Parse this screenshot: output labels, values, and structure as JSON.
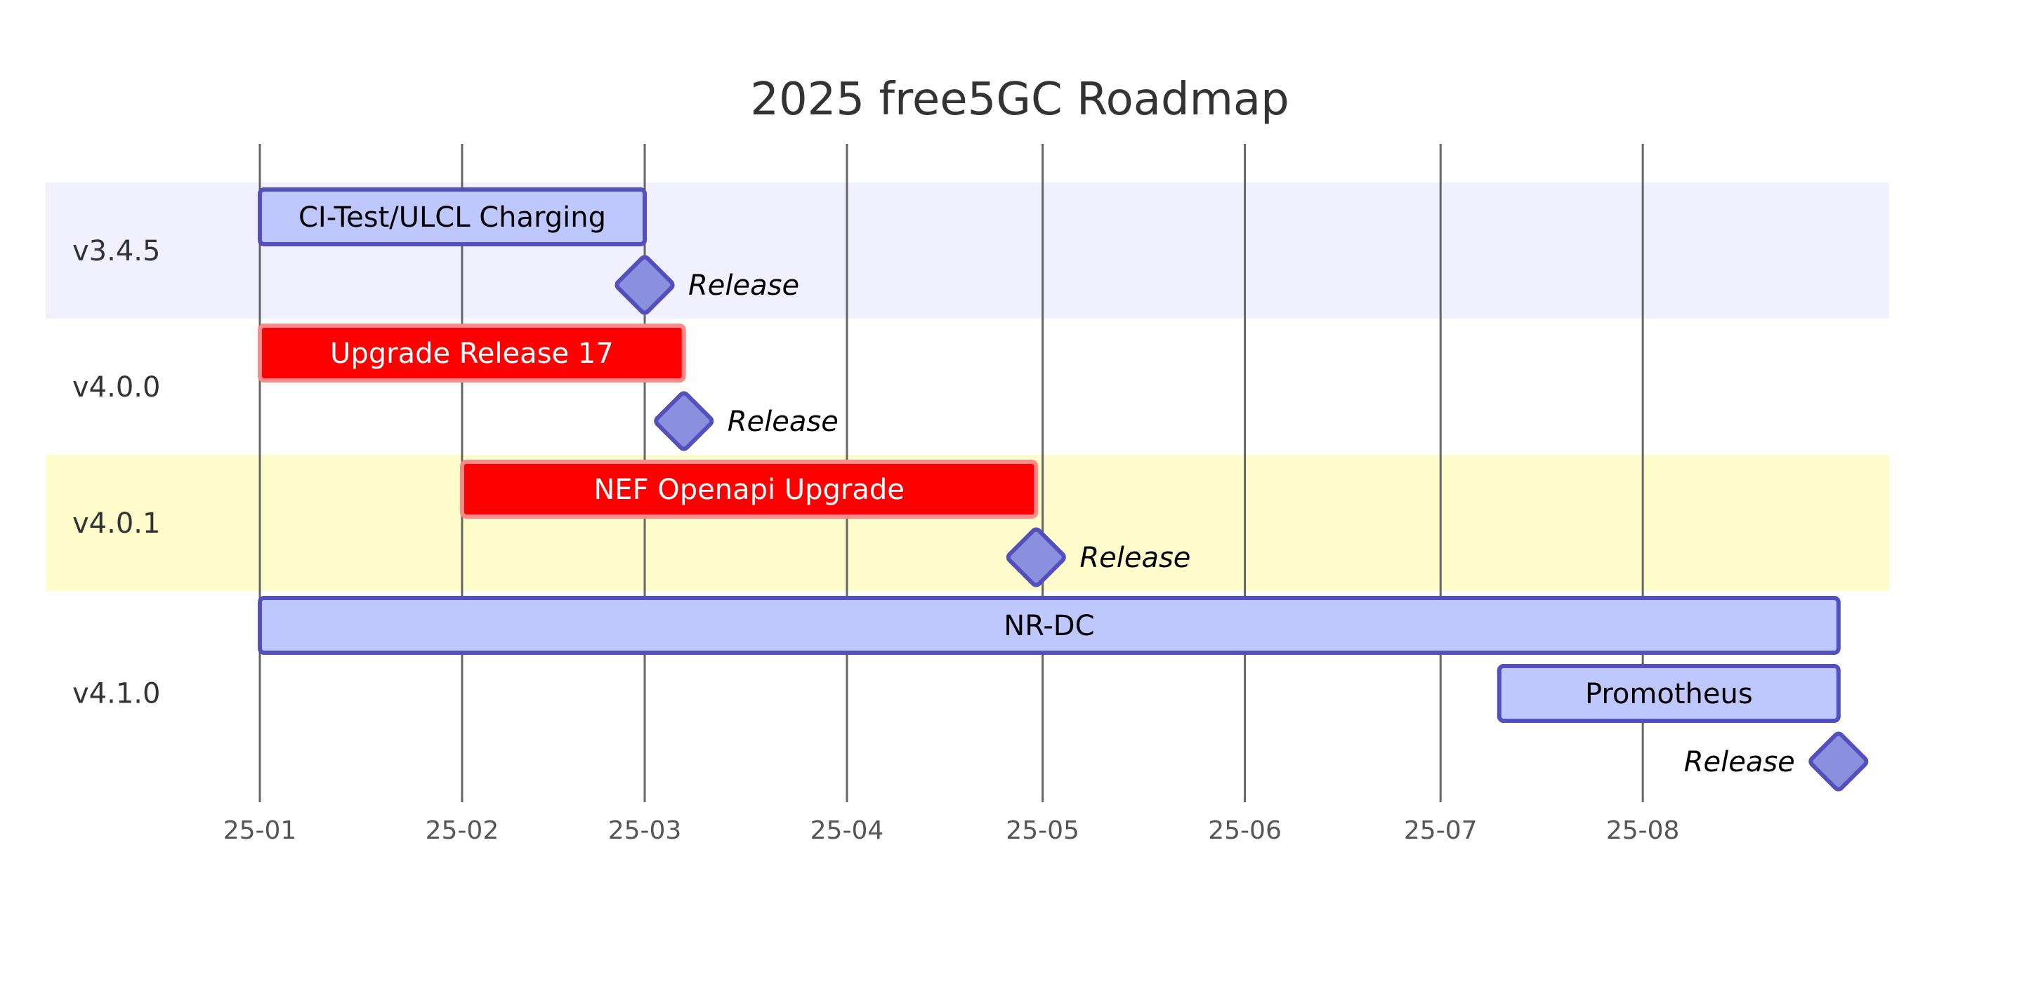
{
  "chart_data": {
    "type": "gantt",
    "title": "2025 free5GC Roadmap",
    "x_domain": [
      "2025-01-01",
      "2025-09-18"
    ],
    "ticks": [
      {
        "date": "2025-01-01",
        "label": "25-01"
      },
      {
        "date": "2025-02-01",
        "label": "25-02"
      },
      {
        "date": "2025-03-01",
        "label": "25-03"
      },
      {
        "date": "2025-04-01",
        "label": "25-04"
      },
      {
        "date": "2025-05-01",
        "label": "25-05"
      },
      {
        "date": "2025-06-01",
        "label": "25-06"
      },
      {
        "date": "2025-07-01",
        "label": "25-07"
      },
      {
        "date": "2025-08-01",
        "label": "25-08"
      }
    ],
    "sections": [
      {
        "name": "v3.4.5",
        "band_color": "#f0f0ff",
        "items": [
          {
            "type": "task",
            "label": "CI-Test/ULCL Charging",
            "start": "2025-01-01",
            "end": "2025-03-01",
            "status": "active"
          },
          {
            "type": "milestone",
            "label": "Release",
            "date": "2025-03-01"
          }
        ]
      },
      {
        "name": "v4.0.0",
        "band_color": "#ffffff",
        "items": [
          {
            "type": "task",
            "label": "Upgrade Release 17",
            "start": "2025-01-01",
            "end": "2025-03-07",
            "status": "critical"
          },
          {
            "type": "milestone",
            "label": "Release",
            "date": "2025-03-07"
          }
        ]
      },
      {
        "name": "v4.0.1",
        "band_color": "#fffccc",
        "items": [
          {
            "type": "task",
            "label": "NEF Openapi Upgrade",
            "start": "2025-02-01",
            "end": "2025-04-30",
            "status": "critical"
          },
          {
            "type": "milestone",
            "label": "Release",
            "date": "2025-04-30"
          }
        ]
      },
      {
        "name": "v4.1.0",
        "band_color": "#ffffff",
        "items": [
          {
            "type": "task",
            "label": "NR-DC",
            "start": "2025-01-01",
            "end": "2025-08-31",
            "status": "active"
          },
          {
            "type": "task",
            "label": "Promotheus",
            "start": "2025-07-10",
            "end": "2025-08-31",
            "status": "active"
          },
          {
            "type": "milestone",
            "label": "Release",
            "date": "2025-08-31"
          }
        ]
      }
    ],
    "colors": {
      "active_fill": "#bfc7ff",
      "active_stroke": "#534fbc",
      "critical_fill": "#ff0000",
      "critical_stroke": "#ff8888",
      "milestone_fill": "#8a90dd",
      "milestone_stroke": "#534fbc",
      "grid": "#666666",
      "active_text": "#000000",
      "critical_text": "#ffffff"
    }
  }
}
